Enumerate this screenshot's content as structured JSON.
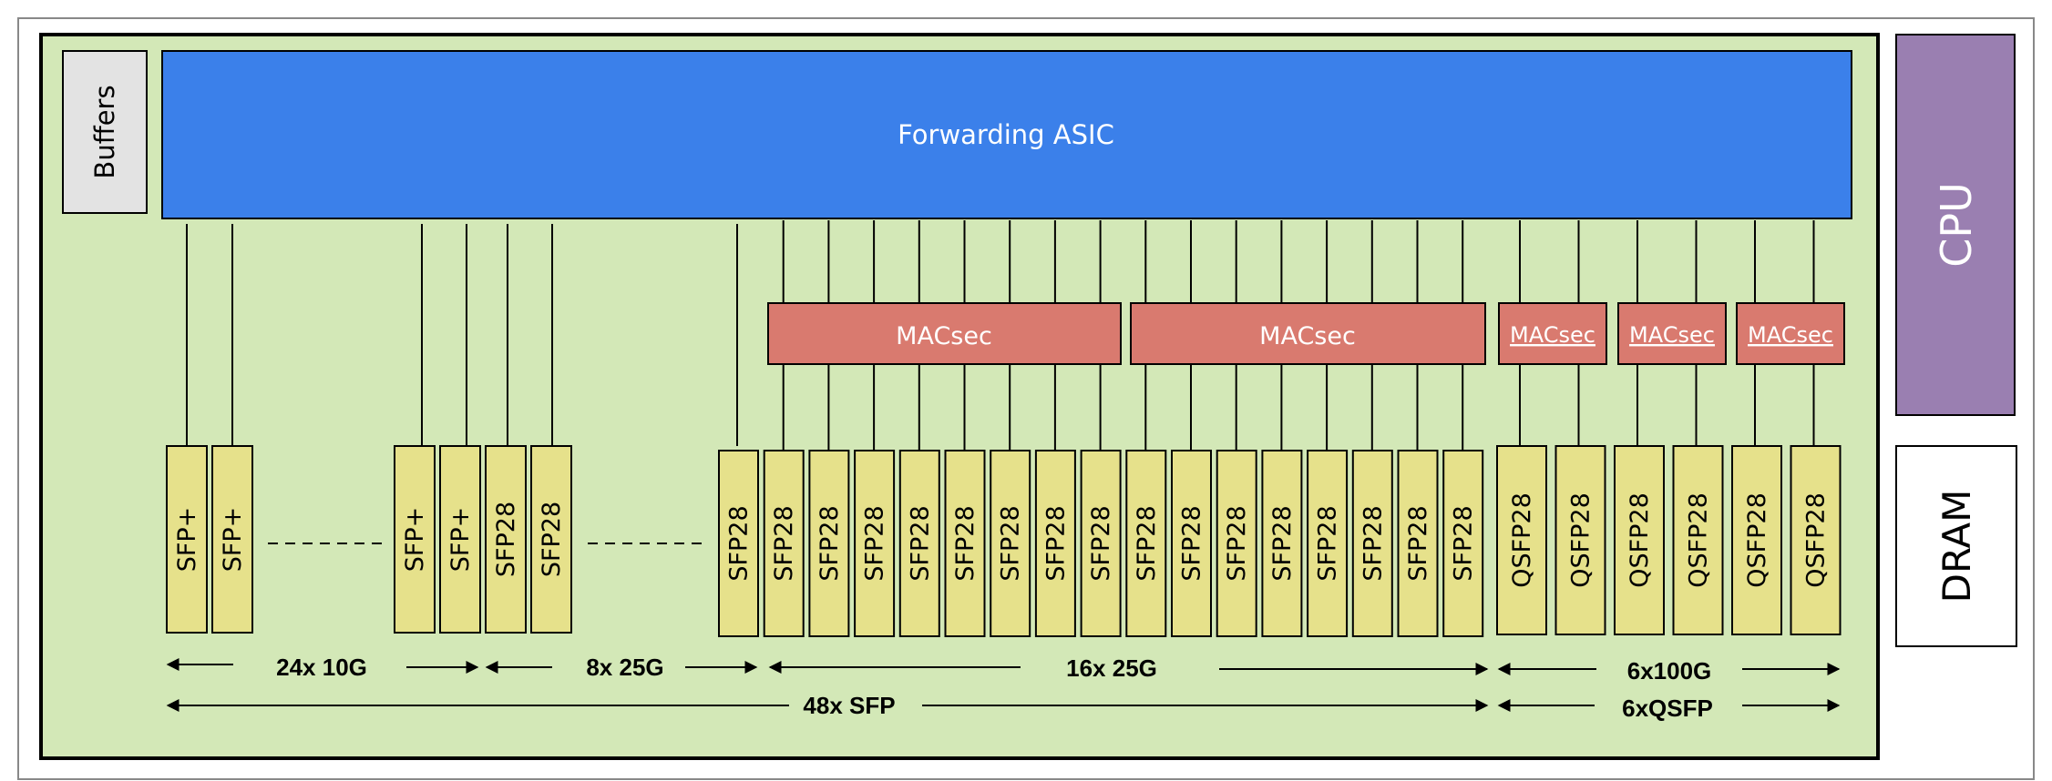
{
  "asic": {
    "label": "Forwarding ASIC"
  },
  "buffers": {
    "label": "Buffers"
  },
  "cpu": {
    "label": "CPU"
  },
  "dram": {
    "label": "DRAM"
  },
  "macsec": {
    "label": "MACsec"
  },
  "ports": {
    "sfp_plus": "SFP+",
    "sfp28": "SFP28",
    "qsfp28": "QSFP28"
  },
  "groups": {
    "g24x10g": "24x 10G",
    "g8x25g": "8x 25G",
    "g16x25g": "16x 25G",
    "g6x100g": "6x100G",
    "g48xsfp": "48x SFP",
    "g6xqsfp": "6xQSFP"
  },
  "colors": {
    "board": "#d3e8b7",
    "asic": "#3b80ea",
    "port": "#e6e18b",
    "macsec": "#d97a6f",
    "cpu": "#9a7fb1",
    "buffers": "#e3e3e3"
  }
}
